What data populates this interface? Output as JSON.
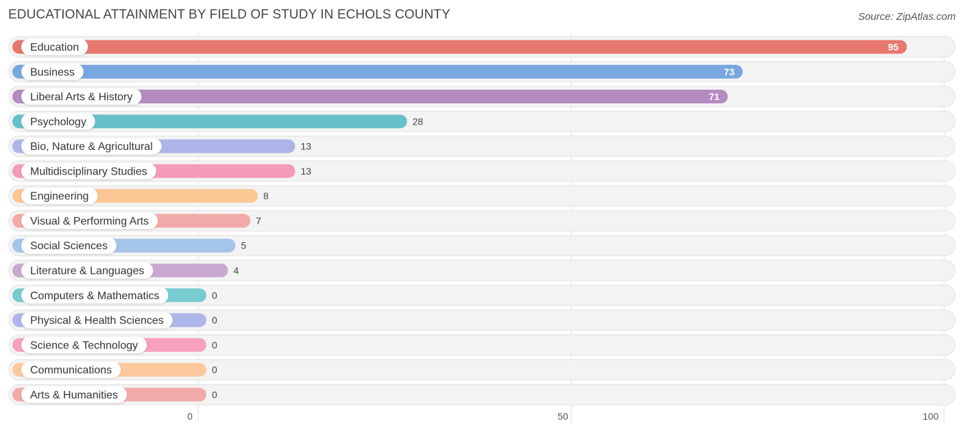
{
  "header": {
    "title": "EDUCATIONAL ATTAINMENT BY FIELD OF STUDY IN ECHOLS COUNTY",
    "source": "Source: ZipAtlas.com"
  },
  "chart_data": {
    "type": "bar",
    "orientation": "horizontal",
    "title": "EDUCATIONAL ATTAINMENT BY FIELD OF STUDY IN ECHOLS COUNTY",
    "categories": [
      "Education",
      "Business",
      "Liberal Arts & History",
      "Psychology",
      "Bio, Nature & Agricultural",
      "Multidisciplinary Studies",
      "Engineering",
      "Visual & Performing Arts",
      "Social Sciences",
      "Literature & Languages",
      "Computers & Mathematics",
      "Physical & Health Sciences",
      "Science & Technology",
      "Communications",
      "Arts & Humanities"
    ],
    "values": [
      95,
      73,
      71,
      28,
      13,
      13,
      8,
      7,
      5,
      4,
      0,
      0,
      0,
      0,
      0
    ],
    "colors": [
      "#e8776f",
      "#78a6e0",
      "#b48ac0",
      "#67c0c8",
      "#adb4e8",
      "#f59ab8",
      "#fcc795",
      "#f2aaa8",
      "#a4c4ea",
      "#c9a9d0",
      "#77ccd0",
      "#aeb6ea",
      "#f7a0c0",
      "#fcc89e",
      "#f2aaa8"
    ],
    "xlim": [
      0,
      100
    ],
    "xticks": [
      0,
      50,
      100
    ],
    "grid": true,
    "legend": "none"
  }
}
